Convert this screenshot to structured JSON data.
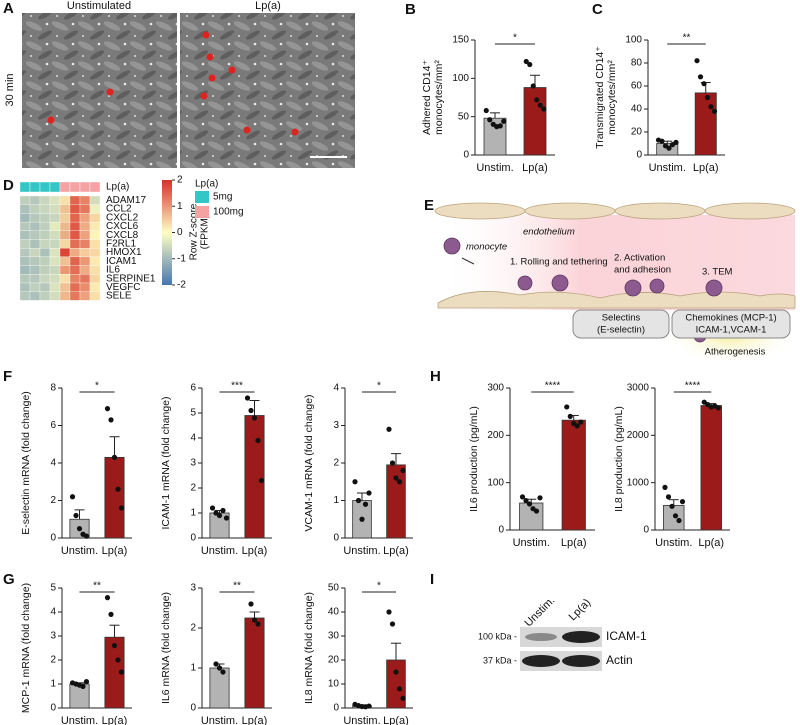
{
  "panels": [
    "A",
    "B",
    "C",
    "D",
    "E",
    "F",
    "G",
    "H",
    "I"
  ],
  "microscopy": {
    "left_label": "Unstimulated",
    "right_label": "Lp(a)",
    "row_label": "30 min"
  },
  "chart_data": [
    {
      "type": "bar",
      "ylabel": [
        "Adhered CD14⁺",
        "monocytes/mm²"
      ],
      "categories": [
        "Unstim.",
        "Lp(a)"
      ],
      "colors": [
        "#b3b3b3",
        "#9b1b1b"
      ],
      "values": [
        48,
        88
      ],
      "errors": [
        7,
        16
      ],
      "points": [
        [
          58,
          46,
          40,
          37,
          38,
          44
        ],
        [
          122,
          118,
          90,
          72,
          65,
          60
        ]
      ],
      "ylim": [
        0,
        150
      ],
      "yticks": [
        0,
        50,
        100,
        150
      ],
      "significance": "*"
    },
    {
      "type": "bar",
      "ylabel": [
        "Transmigrated CD14⁺",
        "monocytes/mm²"
      ],
      "categories": [
        "Unstim.",
        "Lp(a)"
      ],
      "colors": [
        "#b3b3b3",
        "#9b1b1b"
      ],
      "values": [
        10,
        54
      ],
      "errors": [
        2,
        9
      ],
      "points": [
        [
          13,
          12,
          8,
          6,
          9,
          11
        ],
        [
          82,
          68,
          62,
          50,
          42,
          38
        ]
      ],
      "ylim": [
        0,
        100
      ],
      "yticks": [
        0,
        20,
        40,
        60,
        80,
        100
      ],
      "significance": "**"
    },
    {
      "type": "bar",
      "ylabel": [
        "E-selectin mRNA (fold change)"
      ],
      "categories": [
        "Unstim.",
        "Lp(a)"
      ],
      "colors": [
        "#b3b3b3",
        "#9b1b1b"
      ],
      "values": [
        1,
        4.3
      ],
      "errors": [
        0.5,
        1.1
      ],
      "points": [
        [
          2.2,
          1.2,
          0.5,
          0.2,
          0.1
        ],
        [
          6.9,
          6.3,
          4.3,
          2.6,
          1.6
        ]
      ],
      "ylim": [
        0,
        8
      ],
      "yticks": [
        0,
        2,
        4,
        6,
        8
      ],
      "significance": "*"
    },
    {
      "type": "bar",
      "ylabel": [
        "ICAM-1 mRNA (fold change)"
      ],
      "categories": [
        "Unstim.",
        "Lp(a)"
      ],
      "colors": [
        "#b3b3b3",
        "#9b1b1b"
      ],
      "values": [
        1,
        4.9
      ],
      "errors": [
        0.1,
        0.6
      ],
      "points": [
        [
          1.2,
          1,
          0.9,
          1.1,
          0.8
        ],
        [
          5.6,
          5.1,
          4.8,
          3.9,
          2.3
        ]
      ],
      "ylim": [
        0,
        6
      ],
      "yticks": [
        0,
        1,
        2,
        3,
        4,
        5,
        6
      ],
      "significance": "***"
    },
    {
      "type": "bar",
      "ylabel": [
        "VCAM-1 mRNA (fold change)"
      ],
      "categories": [
        "Unstim.",
        "Lp(a)"
      ],
      "colors": [
        "#b3b3b3",
        "#9b1b1b"
      ],
      "values": [
        1,
        1.95
      ],
      "errors": [
        0.2,
        0.3
      ],
      "points": [
        [
          1.5,
          1,
          0.5,
          0.9,
          1.2
        ],
        [
          2.9,
          2,
          1.6,
          1.5,
          1.8
        ]
      ],
      "ylim": [
        0,
        4
      ],
      "yticks": [
        0,
        1,
        2,
        3,
        4
      ],
      "significance": "*"
    },
    {
      "type": "bar",
      "ylabel": [
        "IL6 production (pg/mL)"
      ],
      "categories": [
        "Unstim.",
        "Lp(a)"
      ],
      "colors": [
        "#b3b3b3",
        "#9b1b1b"
      ],
      "values": [
        57,
        232
      ],
      "errors": [
        8,
        10
      ],
      "points": [
        [
          70,
          62,
          55,
          45,
          40,
          68
        ],
        [
          260,
          240,
          225,
          220,
          228
        ]
      ],
      "ylim": [
        0,
        300
      ],
      "yticks": [
        0,
        100,
        200,
        300
      ],
      "significance": "****"
    },
    {
      "type": "bar",
      "ylabel": [
        "IL8 production (pg/mL)"
      ],
      "categories": [
        "Unstim.",
        "Lp(a)"
      ],
      "colors": [
        "#b3b3b3",
        "#9b1b1b"
      ],
      "values": [
        520,
        2630
      ],
      "errors": [
        120,
        40
      ],
      "points": [
        [
          900,
          700,
          500,
          300,
          200,
          600
        ],
        [
          2700,
          2650,
          2600,
          2620,
          2580
        ]
      ],
      "ylim": [
        0,
        3000
      ],
      "yticks": [
        0,
        1000,
        2000,
        3000
      ],
      "significance": "****"
    },
    {
      "type": "bar",
      "ylabel": [
        "MCP-1 mRNA (fold change)"
      ],
      "categories": [
        "Unstim.",
        "Lp(a)"
      ],
      "colors": [
        "#b3b3b3",
        "#9b1b1b"
      ],
      "values": [
        1,
        2.95
      ],
      "errors": [
        0.05,
        0.5
      ],
      "points": [
        [
          1.05,
          1,
          0.95,
          0.9,
          1.1
        ],
        [
          4.6,
          3.9,
          2.6,
          2,
          1.5
        ]
      ],
      "ylim": [
        0,
        5
      ],
      "yticks": [
        0,
        1,
        2,
        3,
        4,
        5
      ],
      "significance": "**"
    },
    {
      "type": "bar",
      "ylabel": [
        "IL6 mRNA (fold change)"
      ],
      "categories": [
        "Unstim.",
        "Lp(a)"
      ],
      "colors": [
        "#b3b3b3",
        "#9b1b1b"
      ],
      "values": [
        1,
        2.25
      ],
      "errors": [
        0.1,
        0.15
      ],
      "points": [
        [
          1.1,
          1,
          0.9
        ],
        [
          2.6,
          2.2,
          2.1
        ]
      ],
      "ylim": [
        0,
        3
      ],
      "yticks": [
        0,
        1,
        2,
        3
      ],
      "significance": "**"
    },
    {
      "type": "bar",
      "ylabel": [
        "IL8 mRNA (fold change)"
      ],
      "categories": [
        "Unstim.",
        "Lp(a)"
      ],
      "colors": [
        "#b3b3b3",
        "#9b1b1b"
      ],
      "values": [
        1,
        20
      ],
      "errors": [
        0.3,
        7
      ],
      "points": [
        [
          1.5,
          1,
          0.6,
          0.5,
          0.8
        ],
        [
          40,
          35,
          15,
          8,
          4
        ]
      ],
      "ylim": [
        0,
        50
      ],
      "yticks": [
        0,
        10,
        20,
        30,
        40,
        50
      ],
      "significance": "*"
    }
  ],
  "heatmap": {
    "genes": [
      "ADAM17",
      "CCL2",
      "CXCL2",
      "CXCL6",
      "CXCL8",
      "F2RL1",
      "HMOX1",
      "ICAM1",
      "IL6",
      "SERPINE1",
      "VEGFC",
      "SELE"
    ],
    "values": [
      [
        -0.7,
        -0.8,
        -0.6,
        -0.4,
        0.3,
        1.5,
        1.2,
        -0.5
      ],
      [
        -0.9,
        -0.7,
        -0.6,
        -0.5,
        0.6,
        1.6,
        1.3,
        -0.2
      ],
      [
        -1.0,
        -0.8,
        -0.7,
        -0.6,
        0.5,
        1.5,
        0.9,
        0.4
      ],
      [
        -0.8,
        -0.9,
        -0.7,
        -0.3,
        0.7,
        1.6,
        0.8,
        0.2
      ],
      [
        -0.9,
        -0.8,
        -0.7,
        -0.5,
        0.8,
        1.6,
        0.9,
        0.1
      ],
      [
        -0.7,
        -0.9,
        -0.6,
        -0.6,
        0.4,
        1.4,
        1.2,
        0.3
      ],
      [
        -0.8,
        -0.6,
        -0.9,
        -0.4,
        1.8,
        0.8,
        0.5,
        0.4
      ],
      [
        -0.9,
        -0.8,
        -0.7,
        -0.4,
        0.6,
        1.5,
        1.0,
        0.2
      ],
      [
        -1.0,
        -0.9,
        -0.7,
        -0.6,
        1.0,
        1.4,
        0.8,
        0.3
      ],
      [
        -0.8,
        -0.8,
        -0.6,
        -0.5,
        0.3,
        1.2,
        1.3,
        0.4
      ],
      [
        -0.9,
        -0.7,
        -0.8,
        -0.4,
        0.6,
        1.4,
        1.1,
        0.2
      ],
      [
        -0.8,
        -0.9,
        -0.7,
        -0.5,
        0.7,
        1.3,
        0.9,
        0.3
      ]
    ],
    "column_groups": [
      "5mg",
      "5mg",
      "5mg",
      "5mg",
      "100mg",
      "100mg",
      "100mg",
      "100mg"
    ],
    "legend_title": "Lp(a)",
    "legend": [
      {
        "name": "5mg",
        "color": "#33c6c6"
      },
      {
        "name": "100mg",
        "color": "#f4a2a2"
      }
    ],
    "colormap": [
      "#4575b4",
      "#ffffbf",
      "#d73027"
    ],
    "clim": [
      -2,
      2
    ],
    "colorbar_ticks": [
      2,
      1,
      0,
      -1,
      -2
    ],
    "colorbar_label": [
      "Row Z-score",
      "(FPKM)"
    ]
  },
  "diagram": {
    "endothelium": "endothelium",
    "monocyte": "monocyte",
    "step1": "1. Rolling and tethering",
    "step2": [
      "2. Activation",
      "and adhesion"
    ],
    "step3": "3. TEM",
    "box1": [
      "Selectins",
      "(E-selectin)"
    ],
    "box2": [
      "Chemokines (MCP-1)",
      "ICAM-1,VCAM-1"
    ],
    "outcome": "Atherogenesis"
  },
  "blot": {
    "lanes": [
      "Unstim.",
      "Lp(a)"
    ],
    "markers": [
      "100 kDa -",
      "37 kDa -"
    ],
    "proteins": [
      "ICAM-1",
      "Actin"
    ]
  }
}
